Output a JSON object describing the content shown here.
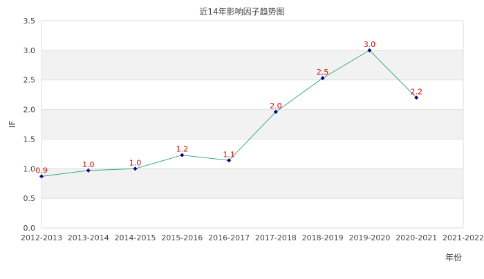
{
  "chart_data": {
    "type": "line",
    "title": "近14年影响因子趋势图",
    "xlabel": "年份",
    "ylabel": "IF",
    "ylim": [
      0,
      3.5
    ],
    "yticks": [
      "0.0",
      "0.5",
      "1.0",
      "1.5",
      "2.0",
      "2.5",
      "3.0",
      "3.5"
    ],
    "categories": [
      "2012-2013",
      "2013-2014",
      "2014-2015",
      "2015-2016",
      "2016-2017",
      "2017-2018",
      "2018-2019",
      "2019-2020",
      "2020-2021",
      "2021-2022"
    ],
    "series": [
      {
        "name": "IF",
        "values": [
          0.87,
          0.97,
          1.0,
          1.23,
          1.14,
          1.96,
          2.53,
          3.0,
          2.2,
          null
        ],
        "labels": [
          "0.9",
          "1.0",
          "1.0",
          "1.2",
          "1.1",
          "2.0",
          "2.5",
          "3.0",
          "2.2",
          null
        ]
      }
    ],
    "grid": true,
    "banded_background": true,
    "legend": "none"
  },
  "colors": {
    "line": "#3aaa8a",
    "marker": "#00008b",
    "label": "#ee0000",
    "band": "#f2f2f2",
    "grid": "#dddddd",
    "text": "#444444"
  }
}
